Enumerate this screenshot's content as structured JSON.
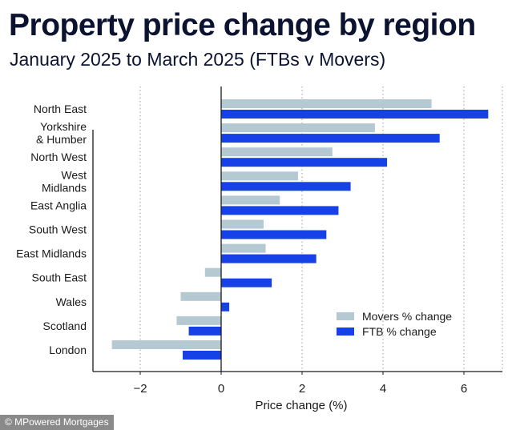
{
  "header": {
    "title": "Property price change by region",
    "subtitle": "January 2025 to March 2025 (FTBs v Movers)"
  },
  "credit": "© MPowered Mortgages",
  "colors": {
    "movers": "#b5c9d2",
    "ftb": "#1541e6",
    "axis": "#1a1a1a",
    "grid": "#9a9a9a",
    "text": "#1a1a1a"
  },
  "chart_data": {
    "type": "bar",
    "orientation": "horizontal",
    "categories": [
      "North East",
      "Yorkshire\n& Humber",
      "North West",
      "West\nMidlands",
      "East Anglia",
      "South West",
      "East Midlands",
      "South East",
      "Wales",
      "Scotland",
      "London"
    ],
    "series": [
      {
        "name": "Movers % change",
        "values": [
          5.2,
          3.8,
          2.75,
          1.9,
          1.45,
          1.05,
          1.1,
          -0.4,
          -1.0,
          -1.1,
          -2.7
        ]
      },
      {
        "name": "FTB % change",
        "values": [
          6.6,
          5.4,
          4.1,
          3.2,
          2.9,
          2.6,
          2.35,
          1.25,
          0.2,
          -0.8,
          -0.95
        ]
      }
    ],
    "xlabel": "Price change (%)",
    "ylabel": "",
    "xlim": [
      -3.2,
      7.0
    ],
    "xticks": [
      -2,
      0,
      2,
      4,
      6
    ],
    "grid": "vertical dotted",
    "legend_position": "bottom-right"
  }
}
